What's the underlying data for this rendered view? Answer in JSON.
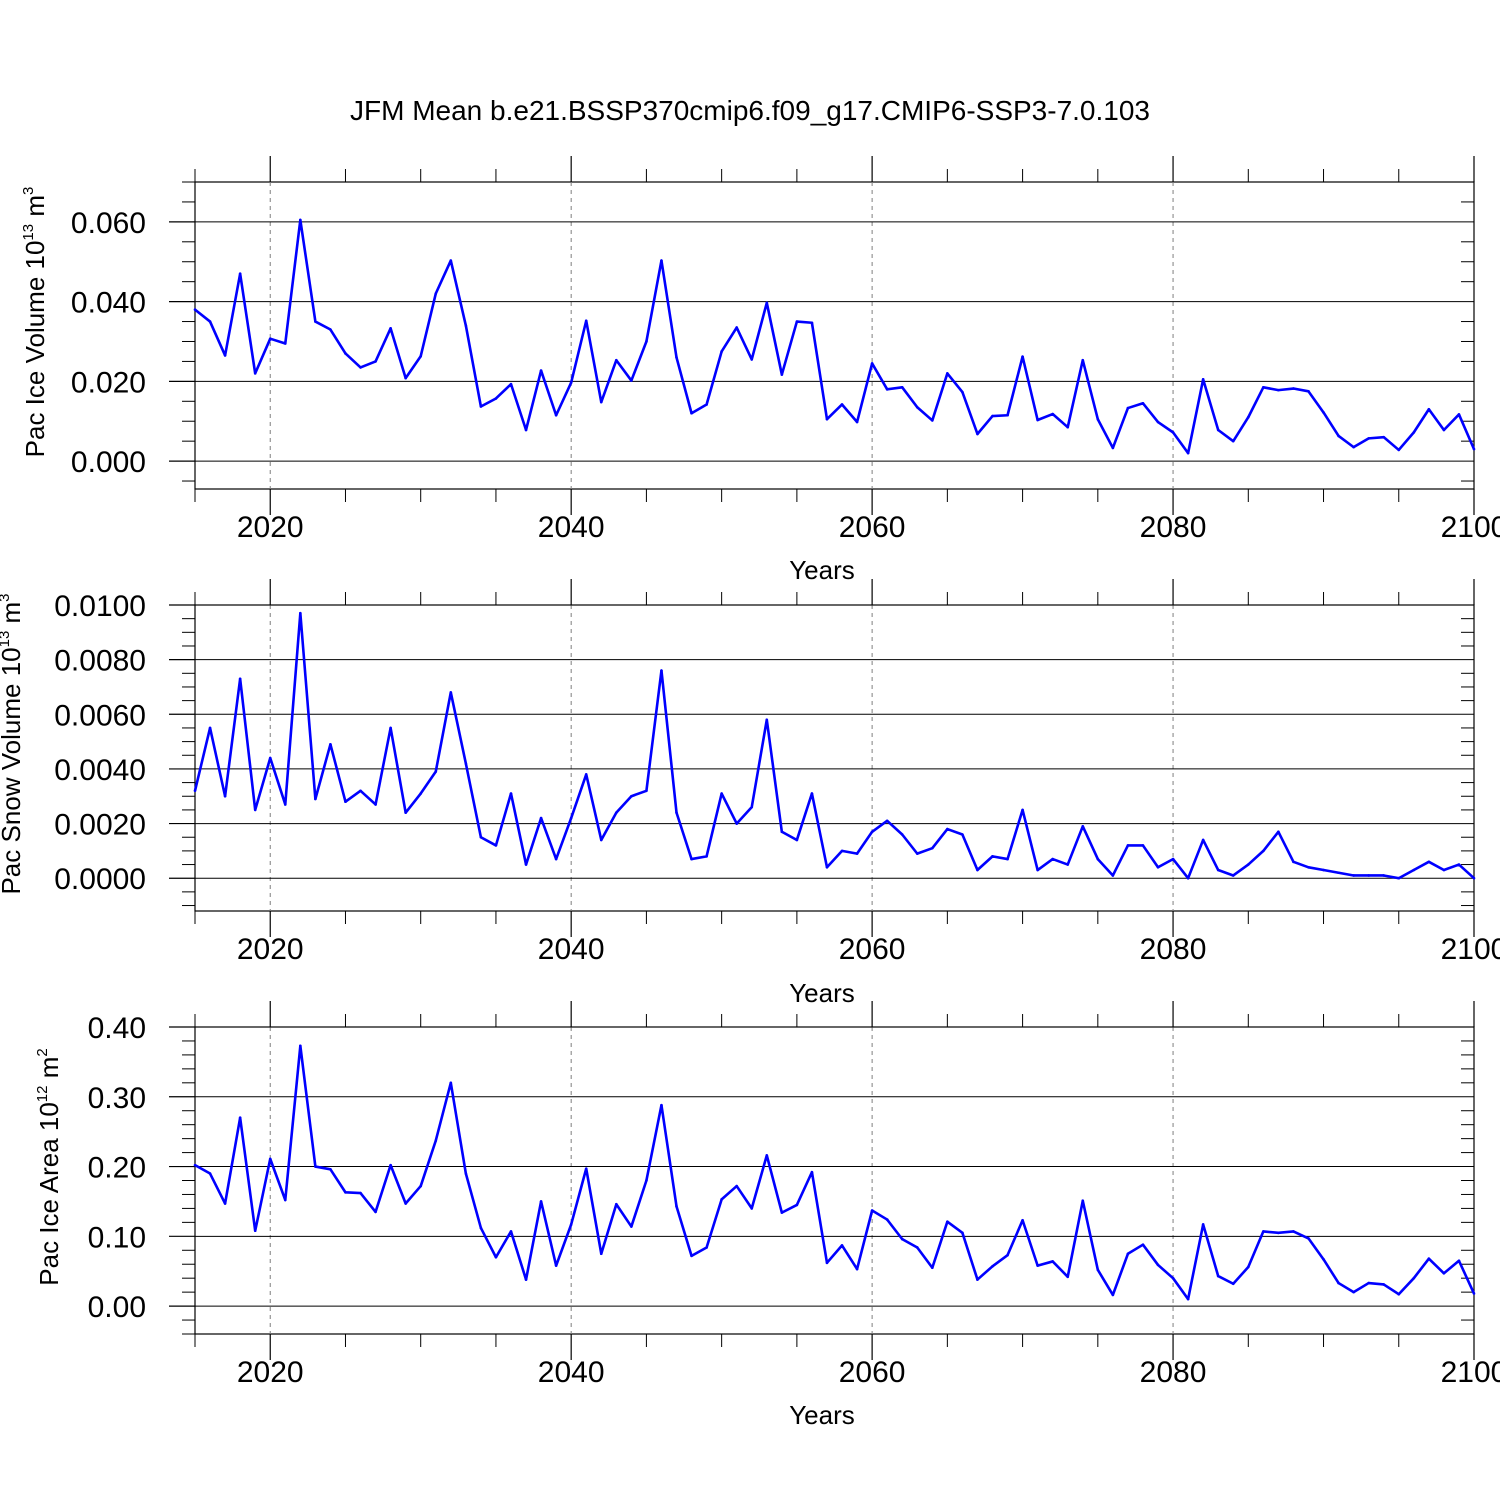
{
  "title": "JFM Mean b.e21.BSSP370cmip6.f09_g17.CMIP6-SSP3-7.0.103",
  "colors": {
    "line": "#0000ff",
    "axis": "#000000",
    "grid": "#7f7f7f"
  },
  "chart_data": [
    {
      "type": "line",
      "name": "ice-volume",
      "ylabel_main": "Pac Ice Volume 10",
      "ylabel_exp": "13",
      "ylabel_unit": " m",
      "ylabel_unit_exp": "3",
      "xlabel": "Years",
      "xlim": [
        2015,
        2100
      ],
      "ylim": [
        -0.007,
        0.07
      ],
      "xticks": [
        2020,
        2040,
        2060,
        2080,
        2100
      ],
      "xtick_labels": [
        "2020",
        "2040",
        "2060",
        "2080",
        "2100"
      ],
      "yticks": [
        0.0,
        0.02,
        0.04,
        0.06
      ],
      "ytick_labels": [
        "0.000",
        "0.020",
        "0.040",
        "0.060"
      ],
      "yminor_step": 0.005,
      "grid_x": [
        2020,
        2040,
        2060,
        2080
      ],
      "x_start": 2015,
      "values": [
        0.038,
        0.035,
        0.0265,
        0.047,
        0.022,
        0.0307,
        0.0295,
        0.0605,
        0.035,
        0.033,
        0.027,
        0.0235,
        0.025,
        0.0333,
        0.0208,
        0.0263,
        0.042,
        0.0503,
        0.034,
        0.0137,
        0.0157,
        0.0193,
        0.0078,
        0.0227,
        0.0115,
        0.0197,
        0.0352,
        0.0148,
        0.0253,
        0.0202,
        0.03,
        0.0503,
        0.026,
        0.012,
        0.0142,
        0.0275,
        0.0335,
        0.0255,
        0.0397,
        0.0217,
        0.035,
        0.0347,
        0.0105,
        0.0142,
        0.0098,
        0.0245,
        0.018,
        0.0185,
        0.0135,
        0.0102,
        0.022,
        0.0173,
        0.0068,
        0.0113,
        0.0115,
        0.0262,
        0.0103,
        0.0118,
        0.0085,
        0.0253,
        0.0105,
        0.0033,
        0.0133,
        0.0145,
        0.0098,
        0.0072,
        0.002,
        0.0205,
        0.0078,
        0.005,
        0.011,
        0.0185,
        0.0178,
        0.0182,
        0.0175,
        0.0122,
        0.0063,
        0.0035,
        0.0057,
        0.006,
        0.0028,
        0.0072,
        0.013,
        0.0078,
        0.0117,
        0.003
      ]
    },
    {
      "type": "line",
      "name": "snow-volume",
      "ylabel_main": "Pac Snow Volume 10",
      "ylabel_exp": "13",
      "ylabel_unit": " m",
      "ylabel_unit_exp": "3",
      "xlabel": "Years",
      "xlim": [
        2015,
        2100
      ],
      "ylim": [
        -0.0012,
        0.01
      ],
      "xticks": [
        2020,
        2040,
        2060,
        2080,
        2100
      ],
      "xtick_labels": [
        "2020",
        "2040",
        "2060",
        "2080",
        "2100"
      ],
      "yticks": [
        0.0,
        0.002,
        0.004,
        0.006,
        0.008,
        0.01
      ],
      "ytick_labels": [
        "0.0000",
        "0.0020",
        "0.0040",
        "0.0060",
        "0.0080",
        "0.0100"
      ],
      "yminor_step": 0.0005,
      "grid_x": [
        2020,
        2040,
        2060,
        2080
      ],
      "x_start": 2015,
      "values": [
        0.0032,
        0.0055,
        0.003,
        0.0073,
        0.0025,
        0.0044,
        0.0027,
        0.0097,
        0.0029,
        0.0049,
        0.0028,
        0.0032,
        0.0027,
        0.0055,
        0.0024,
        0.0031,
        0.0039,
        0.0068,
        0.0042,
        0.0015,
        0.0012,
        0.0031,
        0.0005,
        0.0022,
        0.0007,
        0.0022,
        0.0038,
        0.0014,
        0.0024,
        0.003,
        0.0032,
        0.0076,
        0.0024,
        0.0007,
        0.0008,
        0.0031,
        0.002,
        0.0026,
        0.0058,
        0.0017,
        0.0014,
        0.0031,
        0.0004,
        0.001,
        0.0009,
        0.0017,
        0.0021,
        0.0016,
        0.0009,
        0.0011,
        0.0018,
        0.0016,
        0.0003,
        0.0008,
        0.0007,
        0.0025,
        0.0003,
        0.0007,
        0.0005,
        0.0019,
        0.0007,
        0.0001,
        0.0012,
        0.0012,
        0.0004,
        0.0007,
        0.0,
        0.0014,
        0.0003,
        0.0001,
        0.0005,
        0.001,
        0.0017,
        0.0006,
        0.0004,
        0.0003,
        0.0002,
        0.0001,
        0.0001,
        0.0001,
        0.0,
        0.0003,
        0.0006,
        0.0003,
        0.0005,
        0.0
      ]
    },
    {
      "type": "line",
      "name": "ice-area",
      "ylabel_main": "Pac Ice Area 10",
      "ylabel_exp": "12",
      "ylabel_unit": " m",
      "ylabel_unit_exp": "2",
      "xlabel": "Years",
      "xlim": [
        2015,
        2100
      ],
      "ylim": [
        -0.04,
        0.4
      ],
      "xticks": [
        2020,
        2040,
        2060,
        2080,
        2100
      ],
      "xtick_labels": [
        "2020",
        "2040",
        "2060",
        "2080",
        "2100"
      ],
      "yticks": [
        0.0,
        0.1,
        0.2,
        0.3,
        0.4
      ],
      "ytick_labels": [
        "0.00",
        "0.10",
        "0.20",
        "0.30",
        "0.40"
      ],
      "yminor_step": 0.02,
      "grid_x": [
        2020,
        2040,
        2060,
        2080
      ],
      "x_start": 2015,
      "values": [
        0.202,
        0.19,
        0.147,
        0.27,
        0.108,
        0.211,
        0.152,
        0.373,
        0.2,
        0.196,
        0.163,
        0.162,
        0.135,
        0.202,
        0.147,
        0.172,
        0.237,
        0.32,
        0.19,
        0.112,
        0.07,
        0.107,
        0.038,
        0.15,
        0.058,
        0.117,
        0.197,
        0.075,
        0.146,
        0.114,
        0.18,
        0.288,
        0.143,
        0.072,
        0.084,
        0.153,
        0.172,
        0.14,
        0.216,
        0.134,
        0.145,
        0.192,
        0.062,
        0.087,
        0.053,
        0.137,
        0.124,
        0.096,
        0.084,
        0.055,
        0.121,
        0.105,
        0.038,
        0.057,
        0.073,
        0.123,
        0.058,
        0.064,
        0.042,
        0.151,
        0.052,
        0.016,
        0.075,
        0.088,
        0.059,
        0.04,
        0.01,
        0.117,
        0.043,
        0.032,
        0.056,
        0.107,
        0.105,
        0.107,
        0.097,
        0.067,
        0.033,
        0.02,
        0.033,
        0.031,
        0.017,
        0.04,
        0.068,
        0.047,
        0.065,
        0.018
      ]
    }
  ]
}
